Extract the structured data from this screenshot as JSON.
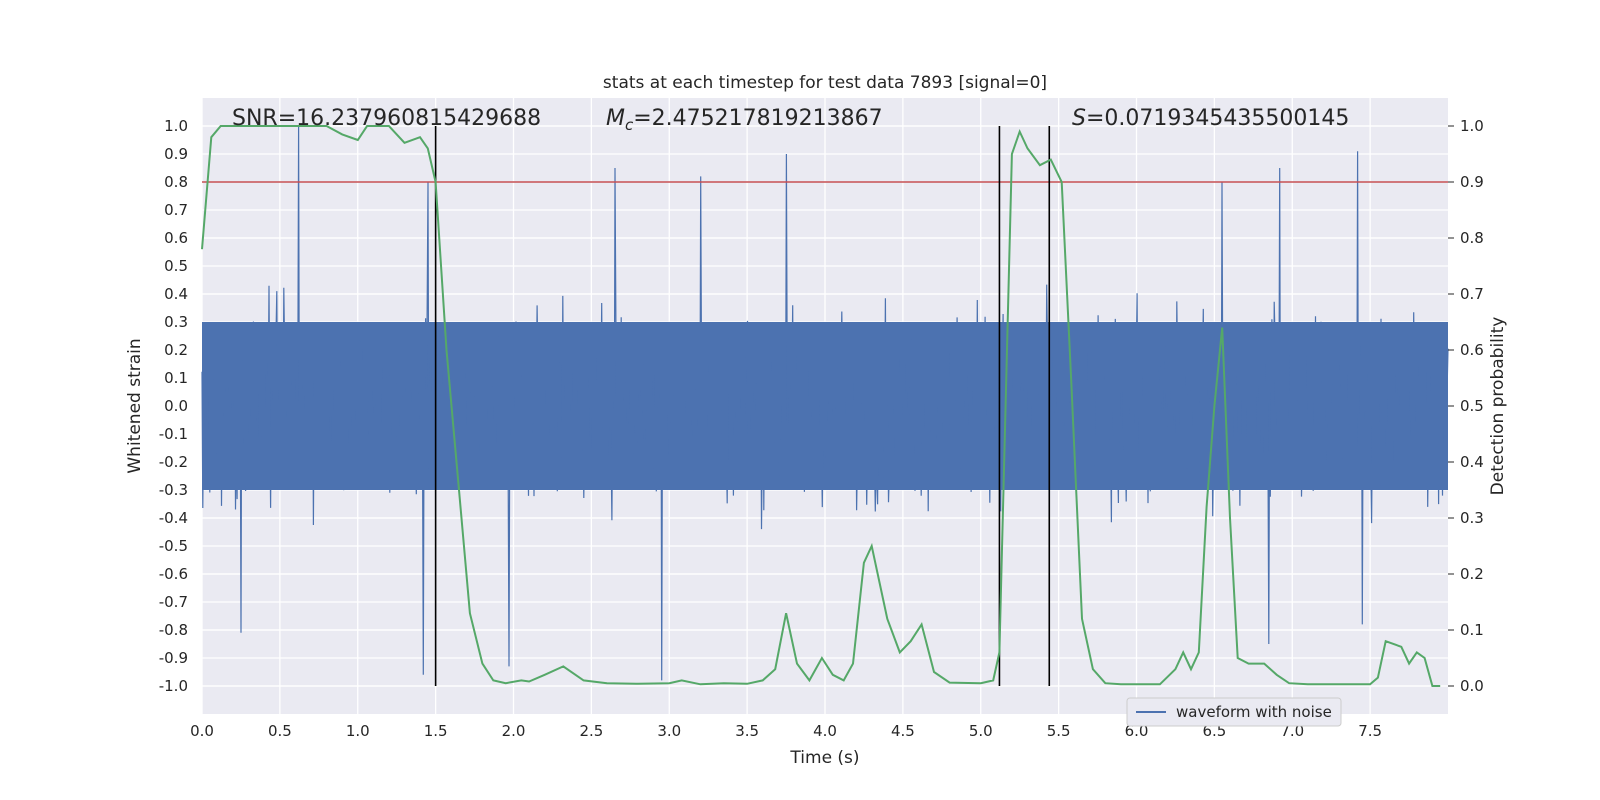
{
  "chart_data": {
    "type": "line",
    "title": "stats at each timestep for test data 7893 [signal=0]",
    "xlabel": "Time (s)",
    "ylabel": "Whitened strain",
    "y2label": "Detection probability",
    "xlim": [
      0,
      8
    ],
    "ylim": [
      -1.1,
      1.1
    ],
    "y2lim": [
      -0.05,
      1.05
    ],
    "x_ticks": [
      0.0,
      0.5,
      1.0,
      1.5,
      2.0,
      2.5,
      3.0,
      3.5,
      4.0,
      4.5,
      5.0,
      5.5,
      6.0,
      6.5,
      7.0,
      7.5
    ],
    "x_tick_labels": [
      "0.0",
      "0.5",
      "1.0",
      "1.5",
      "2.0",
      "2.5",
      "3.0",
      "3.5",
      "4.0",
      "4.5",
      "5.0",
      "5.5",
      "6.0",
      "6.5",
      "7.0",
      "7.5"
    ],
    "y_ticks": [
      1.0,
      0.9,
      0.8,
      0.7,
      0.6,
      0.5,
      0.4,
      0.3,
      0.2,
      0.1,
      0.0,
      -0.1,
      -0.2,
      -0.3,
      -0.4,
      -0.5,
      -0.6,
      -0.7,
      -0.8,
      -0.9,
      -1.0
    ],
    "y_tick_labels": [
      "1.0",
      "0.9",
      "0.8",
      "0.7",
      "0.6",
      "0.5",
      "0.4",
      "0.3",
      "0.2",
      "0.1",
      "0.0",
      "-0.1",
      "-0.2",
      "-0.3",
      "-0.4",
      "-0.5",
      "-0.6",
      "-0.7",
      "-0.8",
      "-0.9",
      "-1.0"
    ],
    "y2_ticks": [
      1.0,
      0.9,
      0.8,
      0.7,
      0.6,
      0.5,
      0.4,
      0.3,
      0.2,
      0.1,
      0.0
    ],
    "y2_tick_labels": [
      "1.0",
      "0.9",
      "0.8",
      "0.7",
      "0.6",
      "0.5",
      "0.4",
      "0.3",
      "0.2",
      "0.1",
      "0.0"
    ],
    "grid": true,
    "legend": {
      "placement": "bottom-right",
      "entries": [
        "waveform with noise"
      ]
    },
    "annotations": {
      "snr": "SNR=16.237960815429688",
      "mc_symbol": "M",
      "mc_subscript": "c",
      "mc_value": "=2.475217819213867",
      "s_symbol": "S",
      "s_value": "=0.0719345435500145"
    },
    "threshold": {
      "axis": "y",
      "value": 0.8,
      "color": "#c44e52"
    },
    "vertical_lines": [
      1.5,
      5.12,
      5.44
    ],
    "series": [
      {
        "name": "waveform with noise",
        "axis": "y",
        "color": "#4c72b0",
        "description_band": {
          "core_min": -0.3,
          "core_max": 0.3
        },
        "peaks": [
          {
            "x": 0.62,
            "y": 1.0
          },
          {
            "x": 1.45,
            "y": 0.8
          },
          {
            "x": 2.65,
            "y": 0.85
          },
          {
            "x": 3.2,
            "y": 0.82
          },
          {
            "x": 3.75,
            "y": 0.9
          },
          {
            "x": 6.55,
            "y": 0.8
          },
          {
            "x": 6.92,
            "y": 0.85
          },
          {
            "x": 7.42,
            "y": 0.91
          }
        ],
        "troughs": [
          {
            "x": 0.25,
            "y": -0.81
          },
          {
            "x": 1.42,
            "y": -0.96
          },
          {
            "x": 1.97,
            "y": -0.93
          },
          {
            "x": 2.95,
            "y": -0.98
          },
          {
            "x": 6.85,
            "y": -0.85
          },
          {
            "x": 7.45,
            "y": -0.78
          }
        ]
      },
      {
        "name": "",
        "axis": "y2",
        "color": "#55a868",
        "x": [
          0.0,
          0.06,
          0.12,
          0.2,
          0.3,
          0.4,
          0.5,
          0.6,
          0.7,
          0.8,
          0.9,
          1.0,
          1.06,
          1.1,
          1.2,
          1.3,
          1.4,
          1.45,
          1.5,
          1.57,
          1.65,
          1.72,
          1.8,
          1.87,
          1.95,
          2.05,
          2.1,
          2.2,
          2.32,
          2.45,
          2.6,
          2.8,
          3.0,
          3.08,
          3.2,
          3.35,
          3.5,
          3.6,
          3.68,
          3.75,
          3.82,
          3.9,
          3.98,
          4.05,
          4.12,
          4.18,
          4.25,
          4.3,
          4.4,
          4.48,
          4.55,
          4.62,
          4.7,
          4.8,
          5.0,
          5.08,
          5.12,
          5.2,
          5.25,
          5.3,
          5.38,
          5.45,
          5.52,
          5.58,
          5.65,
          5.72,
          5.8,
          5.9,
          6.15,
          6.25,
          6.3,
          6.35,
          6.4,
          6.45,
          6.5,
          6.55,
          6.6,
          6.65,
          6.72,
          6.82,
          6.9,
          6.98,
          7.1,
          7.3,
          7.5,
          7.55,
          7.6,
          7.7,
          7.75,
          7.8,
          7.85,
          7.9,
          7.95
        ],
        "y": [
          0.78,
          0.98,
          1.0,
          1.0,
          1.0,
          1.0,
          1.0,
          1.0,
          1.0,
          1.0,
          0.985,
          0.975,
          1.0,
          1.0,
          1.0,
          0.97,
          0.98,
          0.96,
          0.9,
          0.6,
          0.35,
          0.13,
          0.04,
          0.01,
          0.005,
          0.01,
          0.008,
          0.02,
          0.035,
          0.01,
          0.005,
          0.004,
          0.005,
          0.01,
          0.003,
          0.005,
          0.004,
          0.01,
          0.03,
          0.13,
          0.04,
          0.01,
          0.05,
          0.02,
          0.01,
          0.04,
          0.22,
          0.25,
          0.12,
          0.06,
          0.08,
          0.11,
          0.025,
          0.006,
          0.005,
          0.01,
          0.06,
          0.95,
          0.99,
          0.96,
          0.93,
          0.94,
          0.9,
          0.55,
          0.12,
          0.03,
          0.005,
          0.003,
          0.003,
          0.03,
          0.06,
          0.03,
          0.06,
          0.32,
          0.5,
          0.64,
          0.3,
          0.05,
          0.04,
          0.04,
          0.02,
          0.005,
          0.003,
          0.003,
          0.003,
          0.015,
          0.08,
          0.07,
          0.04,
          0.06,
          0.05,
          0.0,
          0.0
        ]
      }
    ]
  }
}
